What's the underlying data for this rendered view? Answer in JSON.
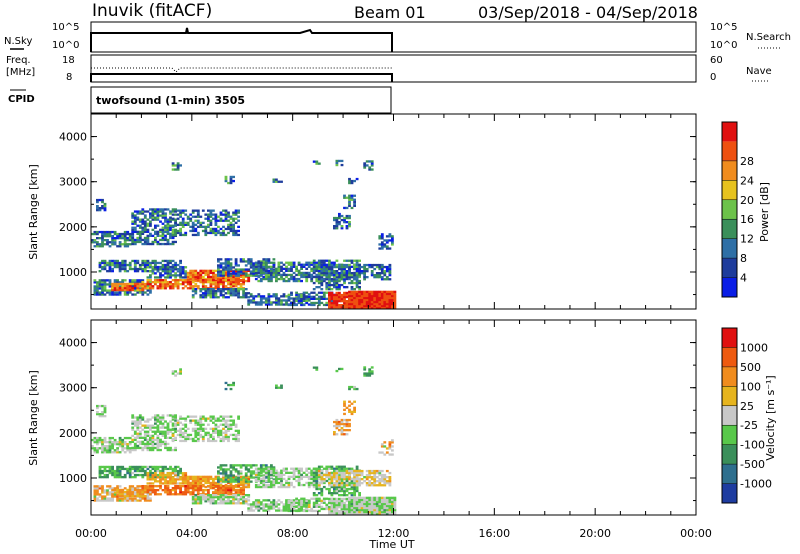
{
  "header": {
    "station": "Inuvik (fitACF)",
    "beam": "Beam 01",
    "date_range": "03/Sep/2018 - 04/Sep/2018"
  },
  "status_panels": {
    "nsky_label": "N.Sky",
    "nsky_ticks": [
      "10^5",
      "10^0"
    ],
    "nsearch_label": "N.Search",
    "nsearch_ticks": [
      "10^5",
      "10^0"
    ],
    "freq_label": "Freq.",
    "freq_unit": "[MHz]",
    "freq_ticks": [
      "18",
      "8"
    ],
    "nave_label": "Nave",
    "nave_ticks": [
      "60",
      "0"
    ],
    "cpid_label": "CPID",
    "cpid_value": "twofsound (1-min) 3505"
  },
  "chart_data": [
    {
      "type": "heatmap",
      "name": "power",
      "ylabel": "Slant Range [km]",
      "ylim": [
        180,
        4500
      ],
      "yticks": [
        "1000",
        "2000",
        "3000",
        "4000"
      ],
      "xlim_hours": [
        0,
        24
      ],
      "colorbar_label": "Power [dB]",
      "colorbar_ticks": [
        "4",
        "8",
        "12",
        "16",
        "20",
        "24",
        "28"
      ],
      "colors": [
        "#0a1ee6",
        "#1e3c9c",
        "#2e6fa6",
        "#3a8f5a",
        "#6cc24a",
        "#e6c21e",
        "#f08c1e",
        "#ee5010",
        "#e01010"
      ]
    },
    {
      "type": "heatmap",
      "name": "velocity",
      "ylabel": "Slant Range [km]",
      "ylim": [
        180,
        4500
      ],
      "yticks": [
        "1000",
        "2000",
        "3000",
        "4000"
      ],
      "xlim_hours": [
        0,
        24
      ],
      "colorbar_label": "Velocity [m s⁻¹]",
      "colorbar_ticks": [
        "1000",
        "500",
        "100",
        "25",
        "-25",
        "-100",
        "-500",
        "-1000"
      ],
      "colors": [
        "#1e3ca0",
        "#2e6f8e",
        "#3a8f5a",
        "#58c84a",
        "#c8c8c8",
        "#e6b41e",
        "#f08c1e",
        "#ee5a10",
        "#e01010"
      ]
    }
  ],
  "x_axis": {
    "ticks": [
      "00:00",
      "04:00",
      "08:00",
      "12:00",
      "16:00",
      "20:00",
      "00:00"
    ],
    "label": "Time UT"
  },
  "observations": {
    "data_end_hours": 12,
    "blobs": [
      {
        "t0": 0.0,
        "t1": 1.6,
        "r0": 1550,
        "r1": 1900,
        "p": 0.5,
        "v": 4,
        "vn": 3,
        "pv": 1
      },
      {
        "t0": 0.3,
        "t1": 3.6,
        "r0": 1000,
        "r1": 1250,
        "p": 0.55,
        "v": 3,
        "vn": 2,
        "pv": 1
      },
      {
        "t0": 0.1,
        "t1": 2.4,
        "r0": 480,
        "r1": 820,
        "p": 0.55,
        "v": 4,
        "vn": 6,
        "pv": 1
      },
      {
        "t0": 0.8,
        "t1": 2.2,
        "r0": 580,
        "r1": 760,
        "p": 0.65,
        "v": 6,
        "vn": 5,
        "pv": 1
      },
      {
        "t0": 1.6,
        "t1": 3.4,
        "r0": 1600,
        "r1": 2400,
        "p": 0.4,
        "v": 4,
        "vn": 3,
        "pv": 1
      },
      {
        "t0": 2.2,
        "t1": 3.8,
        "r0": 860,
        "r1": 1100,
        "p": 0.55,
        "v": 6,
        "vn": 5,
        "pv": 1
      },
      {
        "t0": 3.2,
        "t1": 5.8,
        "r0": 1800,
        "r1": 2350,
        "p": 0.35,
        "v": 4,
        "vn": 3,
        "pv": 1
      },
      {
        "t0": 3.8,
        "t1": 6.2,
        "r0": 780,
        "r1": 1050,
        "p": 0.7,
        "v": 6,
        "vn": 5,
        "pv": 1
      },
      {
        "t0": 2.0,
        "t1": 6.0,
        "r0": 620,
        "r1": 820,
        "p": 0.6,
        "v": 6,
        "vn": 7,
        "pv": 1
      },
      {
        "t0": 4.0,
        "t1": 6.2,
        "r0": 420,
        "r1": 620,
        "p": 0.55,
        "v": 4,
        "vn": 3,
        "pv": 1
      },
      {
        "t0": 5.0,
        "t1": 7.2,
        "r0": 900,
        "r1": 1300,
        "p": 0.45,
        "v": 3,
        "vn": 2,
        "pv": 1
      },
      {
        "t0": 6.2,
        "t1": 8.6,
        "r0": 260,
        "r1": 520,
        "p": 0.5,
        "v": 4,
        "vn": 3,
        "pv": 1
      },
      {
        "t0": 6.5,
        "t1": 9.0,
        "r0": 780,
        "r1": 1220,
        "p": 0.45,
        "v": 4,
        "vn": 3,
        "pv": 1
      },
      {
        "t0": 7.8,
        "t1": 9.6,
        "r0": 250,
        "r1": 560,
        "p": 0.45,
        "v": 4,
        "vn": 3,
        "pv": 1
      },
      {
        "t0": 8.8,
        "t1": 10.6,
        "r0": 600,
        "r1": 1250,
        "p": 0.4,
        "v": 3,
        "vn": 2,
        "pv": 1
      },
      {
        "t0": 9.0,
        "t1": 11.8,
        "r0": 820,
        "r1": 1150,
        "p": 0.5,
        "v": 4,
        "vn": 5,
        "pv": 1
      },
      {
        "t0": 9.4,
        "t1": 10.8,
        "r0": 200,
        "r1": 520,
        "p": 0.7,
        "v": 4,
        "vn": 3,
        "pv": 1
      },
      {
        "t0": 10.2,
        "t1": 12.0,
        "r0": 180,
        "r1": 560,
        "p": 0.85,
        "v": 4,
        "vn": 3,
        "pv": 1
      },
      {
        "t0": 9.6,
        "t1": 10.2,
        "r0": 1950,
        "r1": 2300,
        "p": 0.4,
        "v": 4,
        "vn": 6,
        "pv": 1
      },
      {
        "t0": 10.0,
        "t1": 10.4,
        "r0": 2400,
        "r1": 2700,
        "p": 0.35,
        "v": 6,
        "vn": 5,
        "pv": 1
      },
      {
        "t0": 11.4,
        "t1": 11.9,
        "r0": 1500,
        "r1": 1850,
        "p": 0.35,
        "v": 4,
        "vn": 6,
        "pv": 1
      },
      {
        "t0": 0.2,
        "t1": 0.6,
        "r0": 2350,
        "r1": 2600,
        "p": 0.4,
        "v": 4,
        "vn": 3,
        "pv": 1
      },
      {
        "t0": 3.2,
        "t1": 3.6,
        "r0": 3250,
        "r1": 3400,
        "p": 0.45,
        "v": 4,
        "vn": 3,
        "pv": 1
      },
      {
        "t0": 5.3,
        "t1": 5.6,
        "r0": 2950,
        "r1": 3100,
        "p": 0.35,
        "v": 3,
        "vn": 2,
        "pv": 1
      },
      {
        "t0": 7.2,
        "t1": 7.5,
        "r0": 2980,
        "r1": 3050,
        "p": 0.35,
        "v": 3,
        "vn": 2,
        "pv": 1
      },
      {
        "t0": 8.8,
        "t1": 9.1,
        "r0": 3380,
        "r1": 3450,
        "p": 0.35,
        "v": 3,
        "vn": 2,
        "pv": 1
      },
      {
        "t0": 9.7,
        "t1": 9.9,
        "r0": 3350,
        "r1": 3450,
        "p": 0.35,
        "v": 3,
        "vn": 2,
        "pv": 1
      },
      {
        "t0": 10.8,
        "t1": 11.2,
        "r0": 3250,
        "r1": 3450,
        "p": 0.45,
        "v": 3,
        "vn": 2,
        "pv": 1
      },
      {
        "t0": 10.2,
        "t1": 10.5,
        "r0": 2950,
        "r1": 3050,
        "p": 0.35,
        "v": 3,
        "vn": 2,
        "pv": 1
      }
    ]
  }
}
